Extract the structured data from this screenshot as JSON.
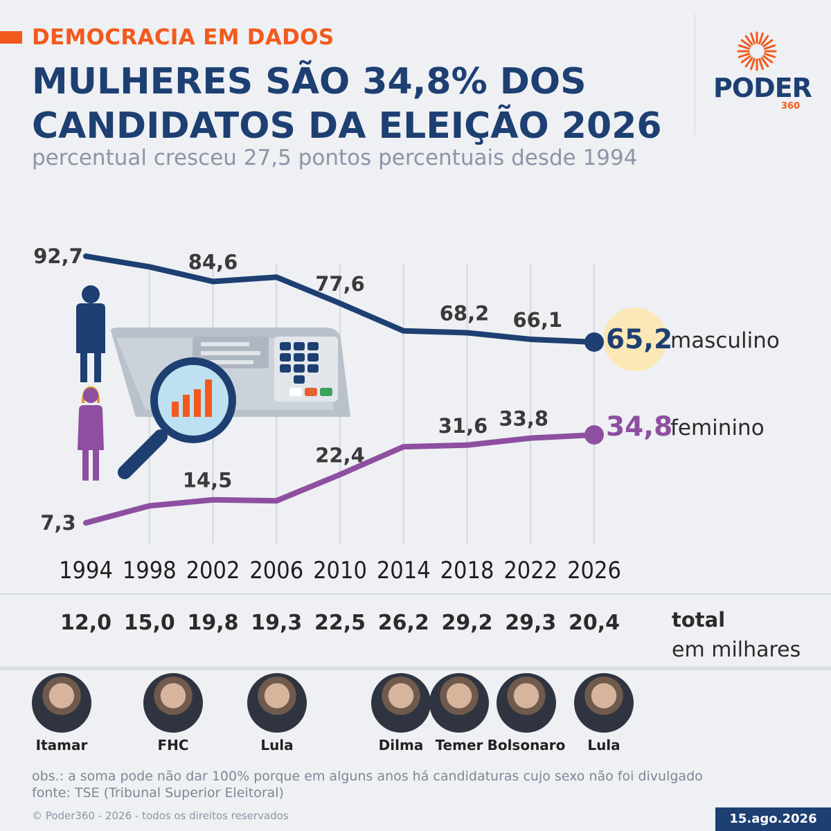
{
  "header": {
    "kicker": "DEMOCRACIA EM DADOS",
    "title": "MULHERES SÃO 34,8% DOS CANDIDATOS DA ELEIÇÃO 2026",
    "subtitle": "percentual cresceu 27,5 pontos percentuais desde 1994"
  },
  "logo": {
    "word": "PODER",
    "number": "360"
  },
  "colors": {
    "accent": "#f25a1d",
    "male": "#1d3f72",
    "female": "#8e4fa0",
    "highlight": "#fbe8b6"
  },
  "chart_data": {
    "type": "line",
    "x": [
      "1994",
      "1998",
      "2002",
      "2006",
      "2010",
      "2014",
      "2018",
      "2022",
      "2026"
    ],
    "series": [
      {
        "name": "masculino",
        "values": [
          92.7,
          89.3,
          84.6,
          86.0,
          77.6,
          68.8,
          68.2,
          66.1,
          65.2
        ],
        "labels": [
          "92,7",
          "",
          "84,6",
          "",
          "77,6",
          "",
          "68,2",
          "66,1",
          "65,2"
        ]
      },
      {
        "name": "feminino",
        "values": [
          7.3,
          12.6,
          14.5,
          14.2,
          22.4,
          31.1,
          31.6,
          33.8,
          34.8
        ],
        "labels": [
          "7,3",
          "",
          "14,5",
          "",
          "22,4",
          "",
          "31,6",
          "33,8",
          "34,8"
        ]
      }
    ],
    "totals": [
      "12,0",
      "15,0",
      "19,8",
      "19,3",
      "22,5",
      "26,2",
      "29,2",
      "29,3",
      "20,4"
    ],
    "total_label": "total",
    "total_unit": "em milhares",
    "grid": "vertical"
  },
  "presidents": [
    {
      "name": "Itamar"
    },
    {
      "name": "FHC"
    },
    {
      "name": "Lula"
    },
    {
      "name": "Dilma"
    },
    {
      "name": "Temer"
    },
    {
      "name": "Bolsonaro"
    },
    {
      "name": "Lula"
    }
  ],
  "footer": {
    "obs": "obs.: a soma pode não dar 100% porque em alguns anos há candidaturas cujo sexo não foi divulgado",
    "source": "fonte: TSE (Tribunal Superior Eleitoral)",
    "copyright": "© Poder360 - 2026 - todos os direitos reservados",
    "date": "15.ago.2026"
  },
  "icons": [
    "male-figure-icon",
    "female-figure-icon",
    "voting-machine-icon",
    "magnifier-chart-icon",
    "sun-logo-icon"
  ]
}
